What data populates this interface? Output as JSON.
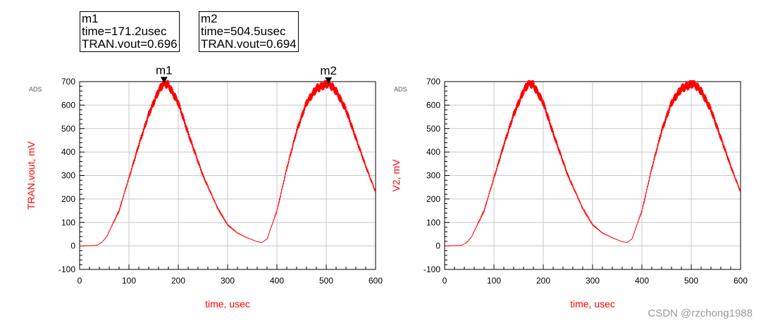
{
  "markers": [
    {
      "name": "m1",
      "time_label": "time=171.2usec",
      "value_label": "TRAN.vout=0.696",
      "time": 171.2,
      "value_mV": 696
    },
    {
      "name": "m2",
      "time_label": "time=504.5usec",
      "value_label": "TRAN.vout=0.694",
      "time": 504.5,
      "value_mV": 694
    }
  ],
  "watermark": "CSDN @rzchong1988",
  "colors": {
    "trace": "#ff0000",
    "label": "#ff0000",
    "grid": "#c8c8c8",
    "axis": "#000000"
  },
  "chart_data": [
    {
      "type": "line",
      "tag": "ADS",
      "xlabel": "time, usec",
      "ylabel": "TRAN.vout, mV",
      "xlim": [
        0,
        600
      ],
      "ylim": [
        -100,
        700
      ],
      "xticks": [
        0,
        100,
        200,
        300,
        400,
        500,
        600
      ],
      "yticks": [
        -100,
        0,
        100,
        200,
        300,
        400,
        500,
        600,
        700
      ],
      "grid": true,
      "ripple": true,
      "series": [
        {
          "x": [
            0,
            30,
            35,
            45,
            55,
            80,
            100,
            120,
            140,
            160,
            171.2,
            180,
            200,
            220,
            250,
            280,
            300,
            320,
            340,
            360,
            370,
            380,
            400,
            420,
            440,
            460,
            480,
            504.5,
            520,
            540,
            560,
            580,
            600
          ],
          "y": [
            0,
            2,
            3,
            15,
            40,
            150,
            290,
            430,
            560,
            660,
            696,
            685,
            610,
            480,
            300,
            160,
            90,
            55,
            35,
            18,
            15,
            30,
            150,
            330,
            490,
            610,
            670,
            694,
            660,
            580,
            460,
            340,
            230
          ]
        }
      ]
    },
    {
      "type": "line",
      "tag": "ADS",
      "xlabel": "time, usec",
      "ylabel": "V2, mV",
      "xlim": [
        0,
        600
      ],
      "ylim": [
        -100,
        700
      ],
      "xticks": [
        0,
        100,
        200,
        300,
        400,
        500,
        600
      ],
      "yticks": [
        -100,
        0,
        100,
        200,
        300,
        400,
        500,
        600,
        700
      ],
      "grid": true,
      "ripple": true,
      "series": [
        {
          "x": [
            0,
            30,
            35,
            45,
            55,
            80,
            100,
            120,
            140,
            160,
            171.2,
            180,
            200,
            220,
            250,
            280,
            300,
            320,
            340,
            360,
            370,
            380,
            400,
            420,
            440,
            460,
            480,
            504.5,
            520,
            540,
            560,
            580,
            600
          ],
          "y": [
            0,
            2,
            3,
            15,
            40,
            150,
            290,
            430,
            560,
            660,
            696,
            685,
            610,
            480,
            300,
            160,
            90,
            55,
            35,
            18,
            15,
            30,
            150,
            330,
            490,
            610,
            670,
            694,
            660,
            580,
            460,
            340,
            230
          ]
        }
      ]
    }
  ]
}
